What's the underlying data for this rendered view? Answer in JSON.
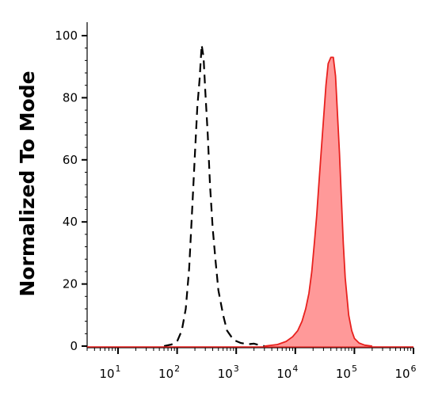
{
  "chart_data": {
    "type": "area",
    "title": "",
    "xlabel": "",
    "ylabel": "Normalized To Mode",
    "xscale": "log",
    "xlim": [
      3,
      1000000
    ],
    "ylim": [
      0,
      100
    ],
    "yticks": [
      0,
      20,
      40,
      60,
      80,
      100
    ],
    "xticks": [
      {
        "value": 10,
        "base": "10",
        "exp": "1"
      },
      {
        "value": 100,
        "base": "10",
        "exp": "2"
      },
      {
        "value": 1000,
        "base": "10",
        "exp": "3"
      },
      {
        "value": 10000,
        "base": "10",
        "exp": "4"
      },
      {
        "value": 100000,
        "base": "10",
        "exp": "5"
      },
      {
        "value": 1000000,
        "base": "10",
        "exp": "6"
      }
    ],
    "grid": false,
    "legend": "none",
    "series": [
      {
        "style": "dashed",
        "color": "#000000",
        "fill": "none",
        "x": [
          60,
          80,
          100,
          120,
          140,
          160,
          180,
          200,
          220,
          240,
          260,
          280,
          300,
          330,
          360,
          400,
          450,
          500,
          600,
          700,
          900,
          1200,
          1600,
          2000,
          2500,
          3000
        ],
        "y": [
          0,
          0.5,
          1.5,
          5,
          12,
          25,
          44,
          62,
          77,
          86,
          97,
          93,
          82,
          68,
          52,
          38,
          27,
          18,
          10,
          5,
          2,
          1,
          0.6,
          0.8,
          0.3,
          0
        ]
      },
      {
        "style": "solid",
        "color": "#e8211e",
        "fill": "#ff9999",
        "x": [
          3000,
          5000,
          7000,
          9000,
          11000,
          13000,
          15000,
          17000,
          19000,
          21000,
          23000,
          25000,
          27000,
          30000,
          33000,
          36000,
          40000,
          44000,
          48000,
          52000,
          56000,
          60000,
          65000,
          70000,
          80000,
          90000,
          100000,
          120000,
          150000,
          200000
        ],
        "y": [
          0,
          0.5,
          1.5,
          3,
          5,
          8,
          12,
          17,
          24,
          33,
          42,
          52,
          61,
          73,
          84,
          91,
          93,
          93,
          87,
          74,
          62,
          48,
          33,
          22,
          10,
          5,
          2.5,
          1,
          0.3,
          0
        ]
      }
    ]
  }
}
